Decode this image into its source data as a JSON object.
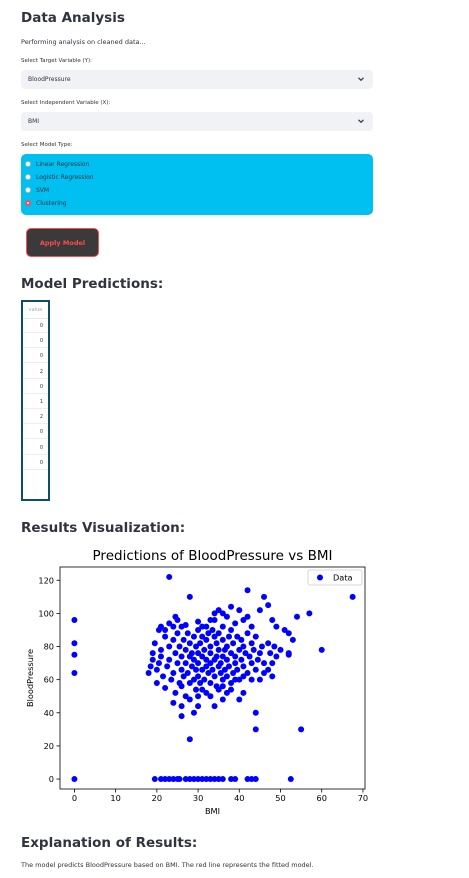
{
  "page": {
    "title": "Data Analysis",
    "status_text": "Performing analysis on cleaned data..."
  },
  "target_select": {
    "label": "Select Target Variable (Y):",
    "value": "BloodPressure"
  },
  "independent_select": {
    "label": "Select Independent Variable (X):",
    "value": "BMI"
  },
  "model_type": {
    "label": "Select Model Type:",
    "options": [
      "Linear Regression",
      "Logistic Regression",
      "SVM",
      "Clustering"
    ],
    "selected": "Clustering"
  },
  "apply_button": {
    "label": "Apply Model"
  },
  "predictions": {
    "heading": "Model Predictions:",
    "column_header": "value",
    "values": [
      "0",
      "0",
      "0",
      "2",
      "0",
      "1",
      "2",
      "0",
      "0",
      "0"
    ]
  },
  "visualization": {
    "heading": "Results Visualization:"
  },
  "explanation": {
    "heading": "Explanation of Results:",
    "text": "The model predicts BloodPressure based on BMI. The red line represents the fitted model."
  },
  "colors": {
    "accent": "#ff4b4b",
    "radio_bg": "#00c0f2",
    "select_bg": "#f0f2f6",
    "point": "#0000ff"
  },
  "chart_data": {
    "type": "scatter",
    "title": "Predictions of BloodPressure vs BMI",
    "xlabel": "BMI",
    "ylabel": "BloodPressure",
    "xlim": [
      -3.5,
      70.5
    ],
    "ylim": [
      -6,
      128
    ],
    "xticks": [
      0,
      10,
      20,
      30,
      40,
      50,
      60,
      70
    ],
    "yticks": [
      0,
      20,
      40,
      60,
      80,
      100,
      120
    ],
    "legend": {
      "entries": [
        "Data"
      ],
      "position": "top-right"
    },
    "series": [
      {
        "name": "Data",
        "points": [
          [
            0,
            0
          ],
          [
            0,
            64
          ],
          [
            0,
            75
          ],
          [
            0,
            82
          ],
          [
            0,
            96
          ],
          [
            19.5,
            0
          ],
          [
            21,
            0
          ],
          [
            22,
            0
          ],
          [
            23,
            0
          ],
          [
            24,
            0
          ],
          [
            25,
            0
          ],
          [
            25.5,
            0
          ],
          [
            27,
            0
          ],
          [
            28,
            0
          ],
          [
            29,
            0
          ],
          [
            30,
            0
          ],
          [
            31,
            0
          ],
          [
            32,
            0
          ],
          [
            33,
            0
          ],
          [
            34,
            0
          ],
          [
            35,
            0
          ],
          [
            36,
            0
          ],
          [
            38,
            0
          ],
          [
            39,
            0
          ],
          [
            42,
            0
          ],
          [
            43,
            0
          ],
          [
            44,
            0
          ],
          [
            52.5,
            0
          ],
          [
            23,
            122
          ],
          [
            28,
            110
          ],
          [
            20.5,
            90
          ],
          [
            21,
            92
          ],
          [
            23,
            94
          ],
          [
            24.5,
            98
          ],
          [
            26,
            92
          ],
          [
            27,
            93
          ],
          [
            31,
            92
          ],
          [
            33,
            96
          ],
          [
            34,
            100
          ],
          [
            35,
            102
          ],
          [
            36,
            100
          ],
          [
            38,
            104
          ],
          [
            40,
            102
          ],
          [
            42,
            114
          ],
          [
            42,
            98
          ],
          [
            45,
            102
          ],
          [
            46,
            110
          ],
          [
            47,
            105
          ],
          [
            48,
            96
          ],
          [
            54,
            98
          ],
          [
            57,
            100
          ],
          [
            60,
            78
          ],
          [
            67.5,
            110
          ],
          [
            55,
            30
          ],
          [
            44,
            30
          ],
          [
            44,
            40
          ],
          [
            28,
            24
          ],
          [
            26,
            38
          ],
          [
            26,
            44
          ],
          [
            30,
            44
          ],
          [
            34,
            44
          ],
          [
            29,
            40
          ],
          [
            36,
            48
          ],
          [
            40,
            48
          ],
          [
            41,
            52
          ],
          [
            37,
            52
          ],
          [
            38,
            54
          ],
          [
            36,
            56
          ],
          [
            43,
            60
          ],
          [
            45,
            60
          ],
          [
            47,
            66
          ],
          [
            48,
            70
          ],
          [
            49,
            74
          ],
          [
            50,
            78
          ],
          [
            52,
            76
          ],
          [
            53,
            84
          ],
          [
            52,
            88
          ],
          [
            51,
            90
          ],
          [
            49,
            92
          ],
          [
            52,
            75
          ],
          [
            18,
            64
          ],
          [
            18.5,
            68
          ],
          [
            19,
            72
          ],
          [
            19,
            76
          ],
          [
            19.5,
            82
          ],
          [
            20,
            58
          ],
          [
            20,
            66
          ],
          [
            20.5,
            70
          ],
          [
            21,
            74
          ],
          [
            21,
            78
          ],
          [
            21.5,
            62
          ],
          [
            22,
            86
          ],
          [
            22,
            55
          ],
          [
            22.5,
            68
          ],
          [
            23,
            72
          ],
          [
            23,
            80
          ],
          [
            23.5,
            60
          ],
          [
            24,
            64
          ],
          [
            24,
            84
          ],
          [
            24.5,
            76
          ],
          [
            24.5,
            52
          ],
          [
            25,
            70
          ],
          [
            25,
            88
          ],
          [
            25.5,
            58
          ],
          [
            25.5,
            80
          ],
          [
            26,
            66
          ],
          [
            26,
            74
          ],
          [
            26.5,
            62
          ],
          [
            26.5,
            84
          ],
          [
            27,
            50
          ],
          [
            27,
            70
          ],
          [
            27,
            78
          ],
          [
            27.5,
            64
          ],
          [
            27.5,
            88
          ],
          [
            28,
            58
          ],
          [
            28,
            74
          ],
          [
            28,
            82
          ],
          [
            28.5,
            68
          ],
          [
            28.5,
            76
          ],
          [
            29,
            60
          ],
          [
            29,
            86
          ],
          [
            29,
            72
          ],
          [
            29.5,
            54
          ],
          [
            29.5,
            66
          ],
          [
            29.5,
            80
          ],
          [
            30,
            62
          ],
          [
            30,
            70
          ],
          [
            30,
            76
          ],
          [
            30,
            90
          ],
          [
            30.5,
            58
          ],
          [
            30.5,
            82
          ],
          [
            31,
            66
          ],
          [
            31,
            74
          ],
          [
            31,
            86
          ],
          [
            31.5,
            60
          ],
          [
            31.5,
            78
          ],
          [
            32,
            52
          ],
          [
            32,
            68
          ],
          [
            32,
            72
          ],
          [
            32,
            84
          ],
          [
            32.5,
            64
          ],
          [
            32.5,
            88
          ],
          [
            33,
            58
          ],
          [
            33,
            70
          ],
          [
            33,
            76
          ],
          [
            33,
            80
          ],
          [
            33.5,
            66
          ],
          [
            33.5,
            90
          ],
          [
            34,
            62
          ],
          [
            34,
            72
          ],
          [
            34,
            86
          ],
          [
            34.5,
            56
          ],
          [
            34.5,
            74
          ],
          [
            34.5,
            82
          ],
          [
            35,
            68
          ],
          [
            35,
            78
          ],
          [
            35,
            88
          ],
          [
            35.5,
            64
          ],
          [
            35.5,
            70
          ],
          [
            36,
            60
          ],
          [
            36,
            74
          ],
          [
            36,
            84
          ],
          [
            36,
            92
          ],
          [
            36.5,
            66
          ],
          [
            36.5,
            78
          ],
          [
            37,
            62
          ],
          [
            37,
            72
          ],
          [
            37,
            80
          ],
          [
            37.5,
            86
          ],
          [
            37.5,
            68
          ],
          [
            38,
            58
          ],
          [
            38,
            76
          ],
          [
            38,
            90
          ],
          [
            38.5,
            64
          ],
          [
            38.5,
            82
          ],
          [
            39,
            70
          ],
          [
            39,
            74
          ],
          [
            39.5,
            66
          ],
          [
            39.5,
            86
          ],
          [
            40,
            60
          ],
          [
            40,
            78
          ],
          [
            40.5,
            72
          ],
          [
            40.5,
            84
          ],
          [
            41,
            68
          ],
          [
            41,
            80
          ],
          [
            41.5,
            76
          ],
          [
            42,
            64
          ],
          [
            42,
            88
          ],
          [
            42.5,
            74
          ],
          [
            43,
            70
          ],
          [
            43,
            82
          ],
          [
            43.5,
            78
          ],
          [
            44,
            66
          ],
          [
            44,
            86
          ],
          [
            44.5,
            72
          ],
          [
            45,
            76
          ],
          [
            45.5,
            80
          ],
          [
            46,
            70
          ],
          [
            46,
            64
          ],
          [
            47,
            82
          ],
          [
            47.5,
            76
          ],
          [
            48,
            62
          ],
          [
            48.5,
            80
          ],
          [
            22,
            90
          ],
          [
            24,
            92
          ],
          [
            30,
            95
          ],
          [
            32,
            92
          ],
          [
            25,
            96
          ],
          [
            26,
            56
          ],
          [
            31,
            54
          ],
          [
            33,
            50
          ],
          [
            35,
            54
          ],
          [
            28,
            48
          ],
          [
            24,
            46
          ],
          [
            30,
            50
          ],
          [
            39,
            60
          ],
          [
            41,
            62
          ],
          [
            34,
            96
          ],
          [
            37,
            98
          ],
          [
            39,
            94
          ],
          [
            41,
            96
          ],
          [
            43,
            92
          ]
        ]
      }
    ]
  }
}
